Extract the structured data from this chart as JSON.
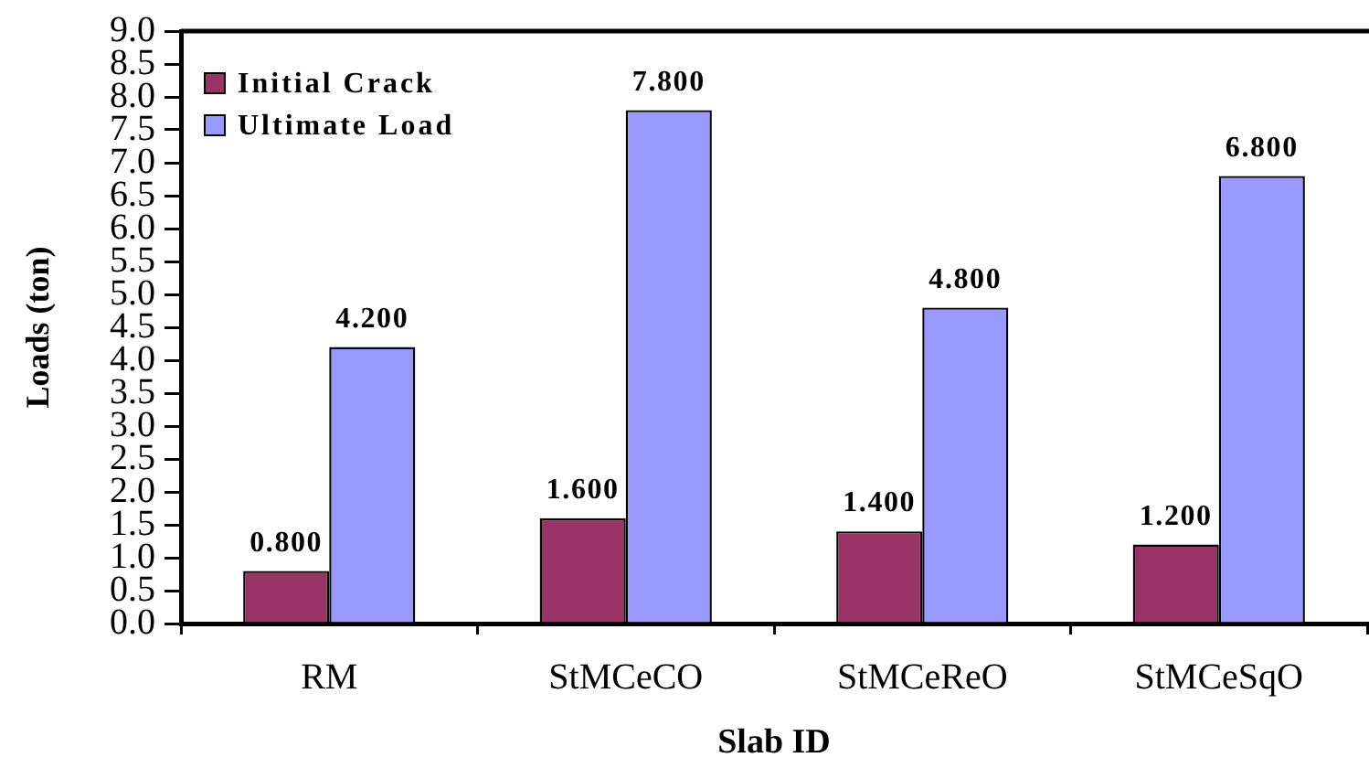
{
  "chart_data": {
    "type": "bar",
    "xlabel": "Slab ID",
    "ylabel": "Loads (ton)",
    "categories": [
      "RM",
      "StMCeCO",
      "StMCeReO",
      "StMCeSqO"
    ],
    "series": [
      {
        "name": "Initial Crack",
        "color": "#993366",
        "values": [
          0.8,
          1.6,
          1.4,
          1.2
        ],
        "value_labels": [
          "0.800",
          "1.600",
          "1.400",
          "1.200"
        ]
      },
      {
        "name": "Ultimate Load",
        "color": "#9999ff",
        "values": [
          4.2,
          7.8,
          4.8,
          6.8
        ],
        "value_labels": [
          "4.200",
          "7.800",
          "4.800",
          "6.800"
        ]
      }
    ],
    "ylim": [
      0,
      9
    ],
    "yticks": [
      {
        "value": 0,
        "label": "0.0"
      },
      {
        "value": 0.5,
        "label": "0.5"
      },
      {
        "value": 1,
        "label": "1.0"
      },
      {
        "value": 1.5,
        "label": "1.5"
      },
      {
        "value": 2,
        "label": "2.0"
      },
      {
        "value": 2.5,
        "label": "2.5"
      },
      {
        "value": 3,
        "label": "3.0"
      },
      {
        "value": 3.5,
        "label": "3.5"
      },
      {
        "value": 4,
        "label": "4.0"
      },
      {
        "value": 4.5,
        "label": "4.5"
      },
      {
        "value": 5,
        "label": "5.0"
      },
      {
        "value": 5.5,
        "label": "5.5"
      },
      {
        "value": 6,
        "label": "6.0"
      },
      {
        "value": 6.5,
        "label": "6.5"
      },
      {
        "value": 7,
        "label": "7.0"
      },
      {
        "value": 7.5,
        "label": "7.5"
      },
      {
        "value": 8,
        "label": "8.0"
      },
      {
        "value": 8.5,
        "label": "8.5"
      },
      {
        "value": 9,
        "label": "9.0"
      }
    ],
    "grid": false,
    "legend": "top left"
  }
}
